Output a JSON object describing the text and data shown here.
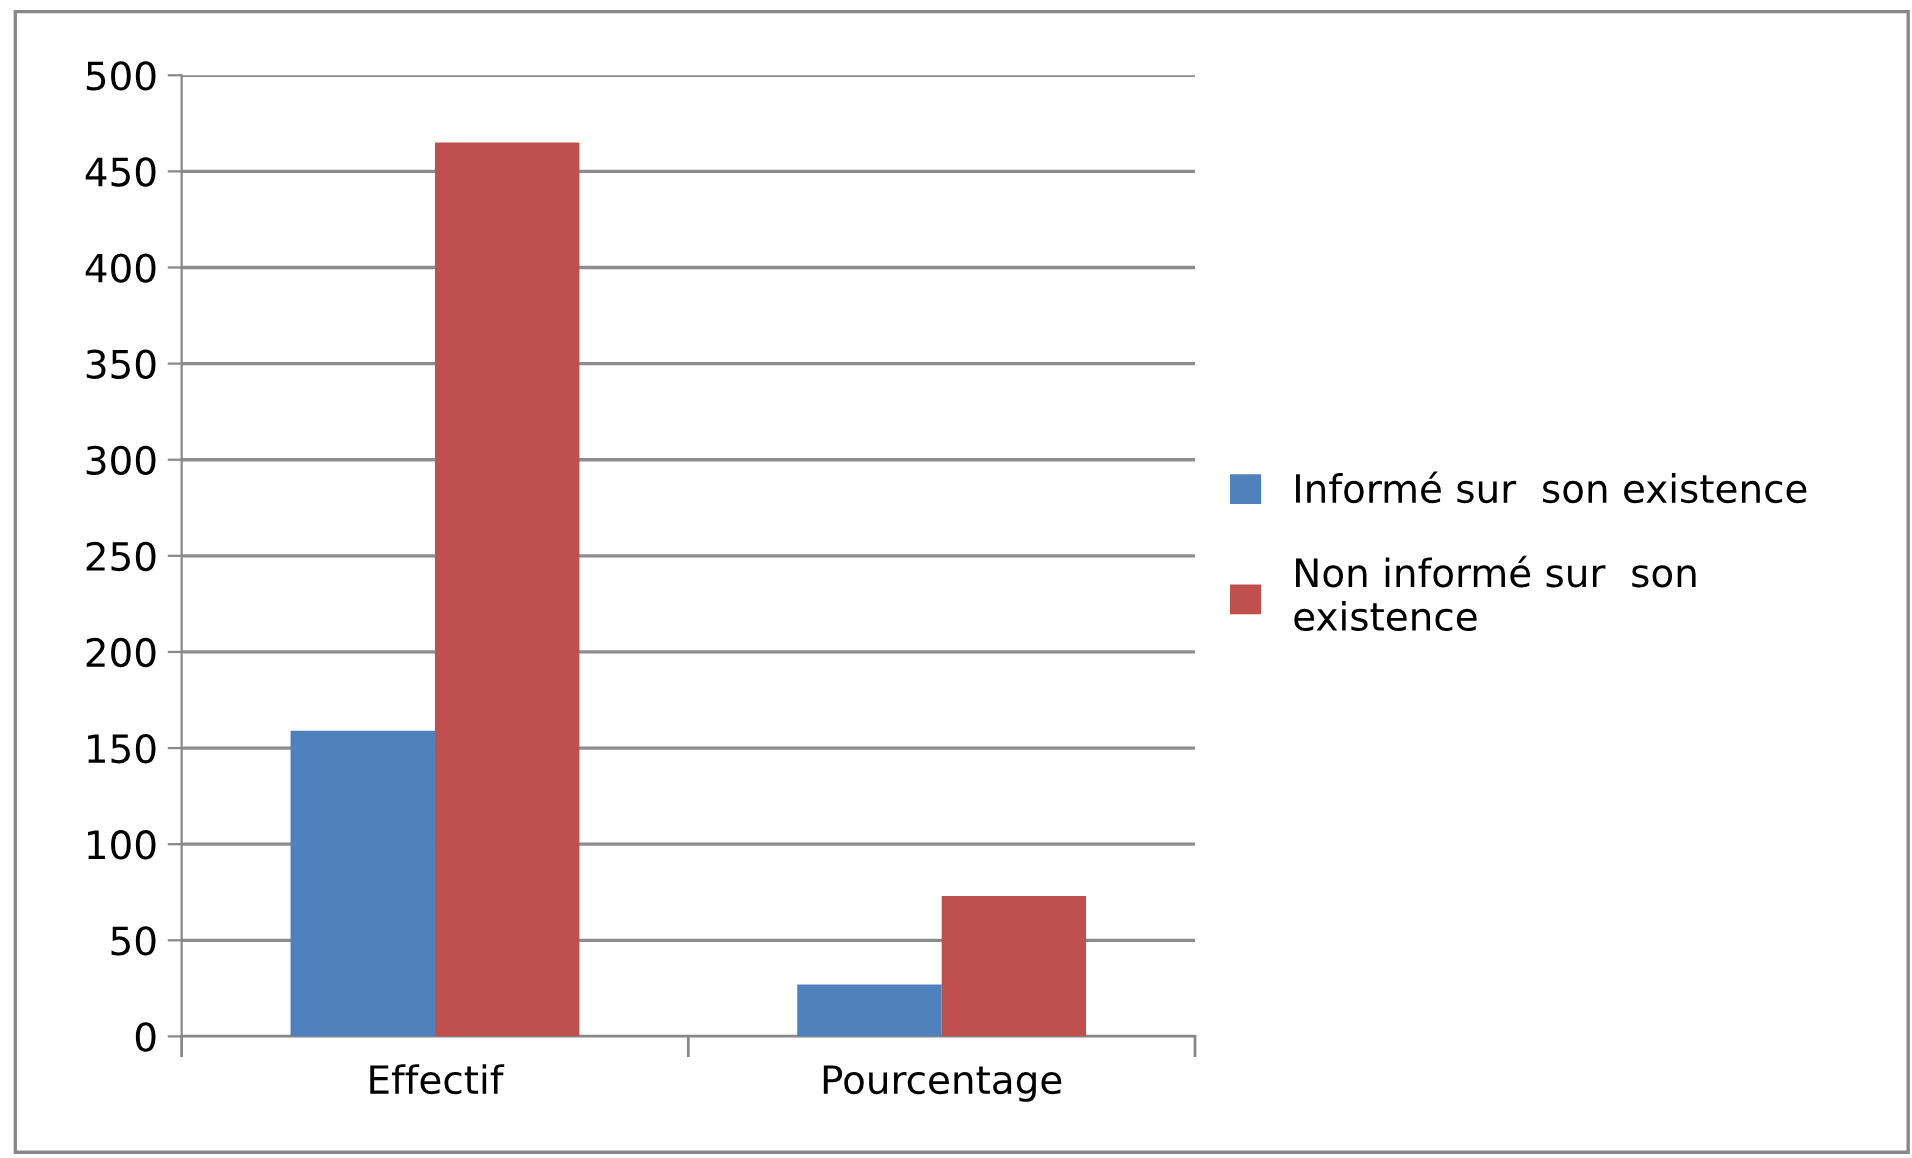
{
  "chart_data": {
    "type": "bar",
    "categories": [
      "Effectif",
      "Pourcentage"
    ],
    "series": [
      {
        "name": "Informé sur  son existence",
        "color": "#4f81bd",
        "values": [
          159,
          27
        ]
      },
      {
        "name": "Non informé sur  son\nexistence",
        "color": "#c0504d",
        "values": [
          465,
          73
        ]
      }
    ],
    "ylim": [
      0,
      500
    ],
    "yticks": [
      0,
      50,
      100,
      150,
      200,
      250,
      300,
      350,
      400,
      450,
      500
    ],
    "grid": "y",
    "legend": "right"
  }
}
